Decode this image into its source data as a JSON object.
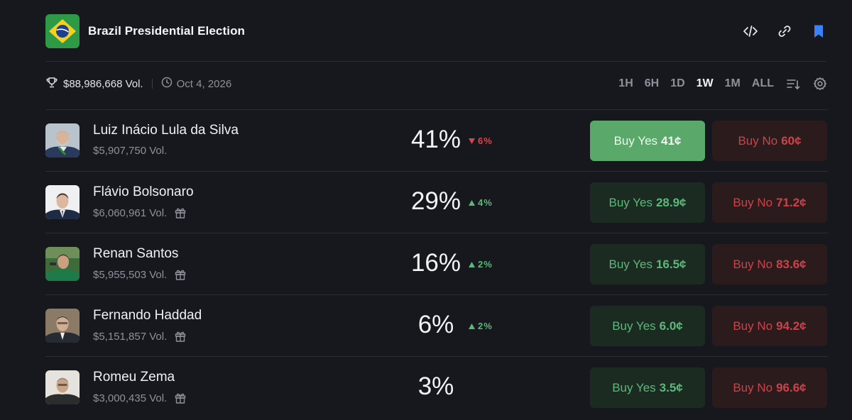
{
  "market": {
    "title": "Brazil Presidential Election",
    "volume": "$88,986,668 Vol.",
    "date": "Oct 4, 2026"
  },
  "header_icons": [
    "code-icon",
    "link-icon",
    "bookmark-icon"
  ],
  "time_ranges": [
    "1H",
    "6H",
    "1D",
    "1W",
    "1M",
    "ALL"
  ],
  "active_range": "1W",
  "colors": {
    "background": "#16181d",
    "yes_green": "#5cb87a",
    "no_red": "#c94449",
    "bookmark_blue": "#3b82f6"
  },
  "candidates": [
    {
      "name": "Luiz Inácio Lula da Silva",
      "volume": "$5,907,750 Vol.",
      "gift": false,
      "percent": "41%",
      "change": "6%",
      "direction": "down",
      "yes_label": "Buy Yes",
      "yes_price": "41¢",
      "no_label": "Buy No",
      "no_price": "60¢",
      "yes_selected": true
    },
    {
      "name": "Flávio Bolsonaro",
      "volume": "$6,060,961 Vol.",
      "gift": true,
      "percent": "29%",
      "change": "4%",
      "direction": "up",
      "yes_label": "Buy Yes",
      "yes_price": "28.9¢",
      "no_label": "Buy No",
      "no_price": "71.2¢",
      "yes_selected": false
    },
    {
      "name": "Renan Santos",
      "volume": "$5,955,503 Vol.",
      "gift": true,
      "percent": "16%",
      "change": "2%",
      "direction": "up",
      "yes_label": "Buy Yes",
      "yes_price": "16.5¢",
      "no_label": "Buy No",
      "no_price": "83.6¢",
      "yes_selected": false
    },
    {
      "name": "Fernando Haddad",
      "volume": "$5,151,857 Vol.",
      "gift": true,
      "percent": "6%",
      "change": "2%",
      "direction": "up",
      "yes_label": "Buy Yes",
      "yes_price": "6.0¢",
      "no_label": "Buy No",
      "no_price": "94.2¢",
      "yes_selected": false
    },
    {
      "name": "Romeu Zema",
      "volume": "$3,000,435 Vol.",
      "gift": true,
      "percent": "3%",
      "change": "",
      "direction": "none",
      "yes_label": "Buy Yes",
      "yes_price": "3.5¢",
      "no_label": "Buy No",
      "no_price": "96.6¢",
      "yes_selected": false
    }
  ]
}
